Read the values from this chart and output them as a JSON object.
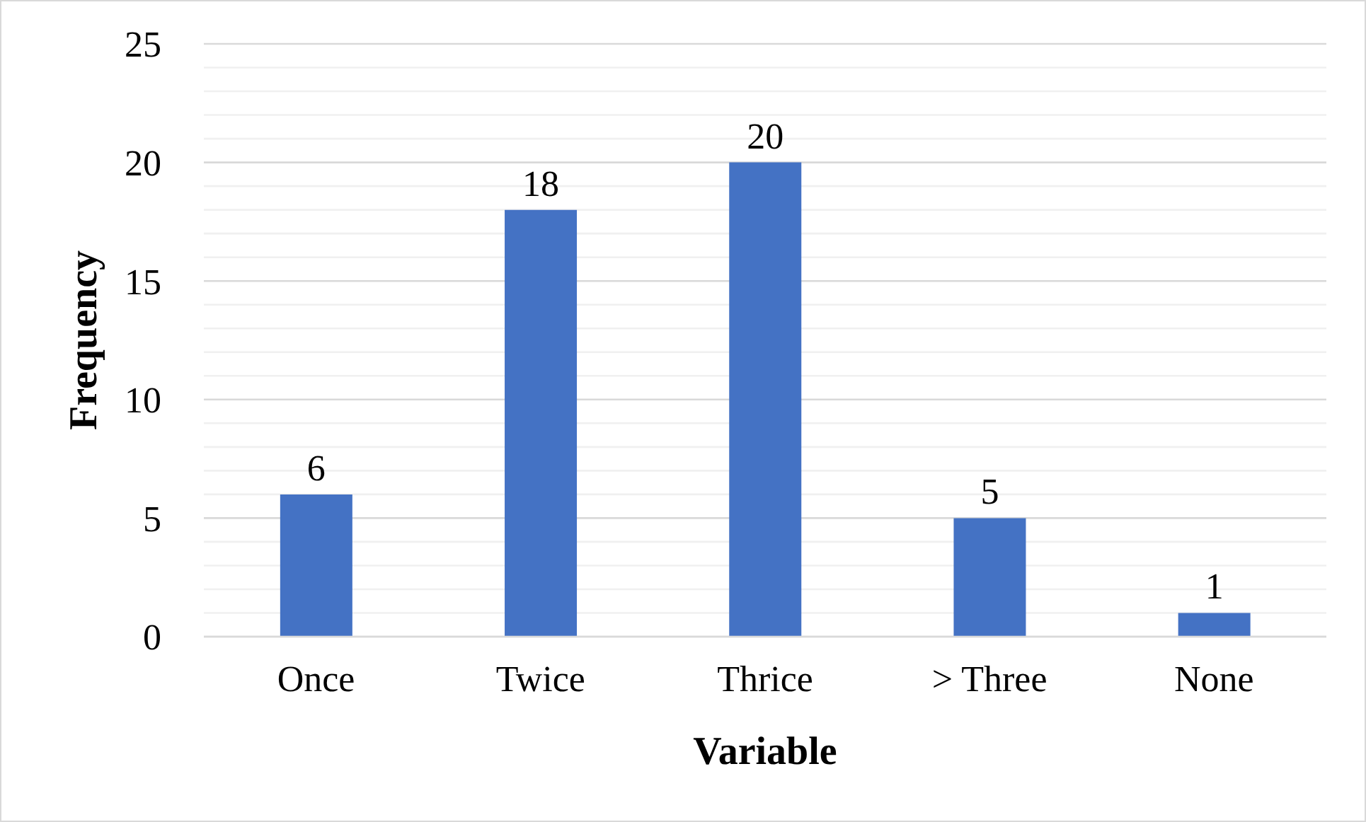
{
  "chart_data": {
    "type": "bar",
    "xlabel": "Variable",
    "ylabel": "Frequency",
    "categories": [
      "Once",
      "Twice",
      "Thrice",
      "> Three",
      "None"
    ],
    "values": [
      6,
      18,
      20,
      5,
      1
    ],
    "color": "#4472c4",
    "ylim": [
      0,
      25
    ],
    "yticks": [
      0,
      {
        "value": 1,
        "label": null
      },
      {
        "value": 2,
        "label": null
      },
      {
        "value": 3,
        "label": null
      },
      {
        "value": 4,
        "label": null
      },
      5,
      {
        "value": 6,
        "label": null
      },
      {
        "value": 7,
        "label": null
      },
      {
        "value": 8,
        "label": null
      },
      {
        "value": 9,
        "label": null
      },
      10,
      {
        "value": 11,
        "label": null
      },
      {
        "value": 12,
        "label": null
      },
      {
        "value": 13,
        "label": null
      },
      {
        "value": 14,
        "label": null
      },
      15,
      {
        "value": 16,
        "label": null
      },
      {
        "value": 17,
        "label": null
      },
      {
        "value": 18,
        "label": null
      },
      {
        "value": 19,
        "label": null
      },
      20,
      {
        "value": 21,
        "label": null
      },
      {
        "value": 22,
        "label": null
      },
      {
        "value": 23,
        "label": null
      },
      {
        "value": 24,
        "label": null
      },
      25
    ],
    "grid": "y",
    "data_labels": true
  }
}
